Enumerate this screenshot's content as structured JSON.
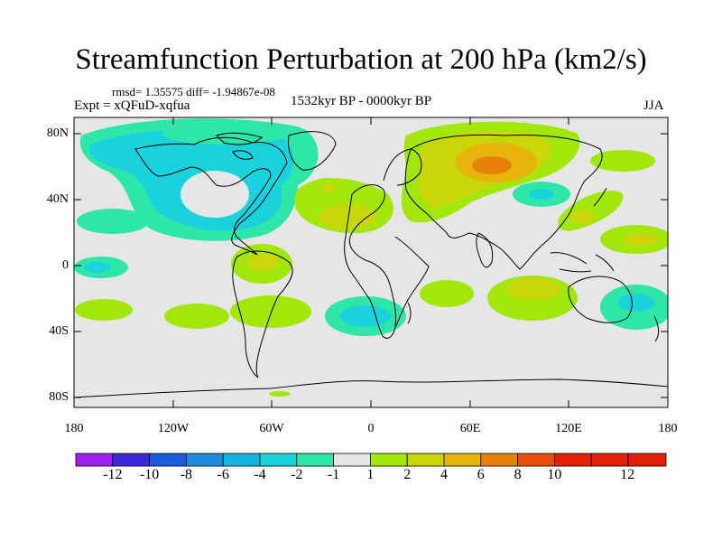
{
  "title": "Streamfunction Perturbation at 200 hPa (km2/s)",
  "stats": "rmsd= 1.35575  diff= -1.94867e-08",
  "experiment": "Expt = xQFuD-xqfua",
  "period": "1532kyr BP - 0000kyr BP",
  "season": "JJA",
  "lat_ticks": [
    "80N",
    "40N",
    "0",
    "40S",
    "80S"
  ],
  "lon_ticks": [
    "180",
    "120W",
    "60W",
    "0",
    "60E",
    "120E",
    "180"
  ],
  "colorbar": {
    "labels": [
      "-12",
      "-10",
      "-8",
      "-6",
      "-4",
      "-2",
      "-1",
      "1",
      "2",
      "4",
      "6",
      "8",
      "10",
      "12"
    ],
    "colors": [
      "#a020f0",
      "#3b28d8",
      "#1c5adc",
      "#1e8cdc",
      "#14b4e0",
      "#1ad2dc",
      "#2ee6a8",
      "#e6e6e6",
      "#a2e60c",
      "#c8d60a",
      "#e6b40a",
      "#e6820a",
      "#e6500a",
      "#e61e0a"
    ]
  }
}
